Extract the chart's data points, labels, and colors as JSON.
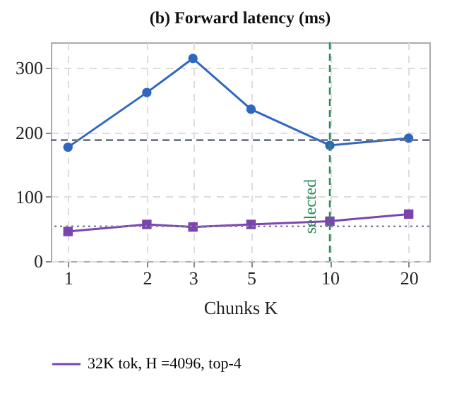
{
  "chart_data": {
    "type": "line",
    "title": "(b) Forward latency (ms)",
    "xlabel": "Chunks K",
    "log": "x",
    "x": [
      1,
      2,
      3,
      5,
      10,
      20
    ],
    "series": [
      {
        "color": "#2f67c0",
        "marker": "circle",
        "values": [
          177,
          262,
          315,
          236,
          180,
          191
        ]
      },
      {
        "name": "32K tok, H =4096, top-4",
        "color": "#7b45b0",
        "marker": "square",
        "values": [
          46,
          57,
          53,
          57,
          62,
          73
        ]
      }
    ],
    "xlim": [
      0.86,
      24
    ],
    "xticks": [
      1,
      2,
      3,
      5,
      10,
      20
    ],
    "ylim": [
      0,
      340
    ],
    "yticks": [
      0,
      100,
      200,
      300
    ],
    "ref_lines": [
      {
        "axis": "y",
        "value": 188,
        "color": "#6b7585",
        "line_style": "dashed"
      },
      {
        "axis": "y",
        "value": 54,
        "color": "#8a80a0",
        "line_style": "dotted"
      },
      {
        "axis": "x",
        "value": 10,
        "label": "selected",
        "color": "#2e8b57",
        "line_style": "dashed"
      }
    ],
    "grid": true,
    "legend": "bottom"
  }
}
